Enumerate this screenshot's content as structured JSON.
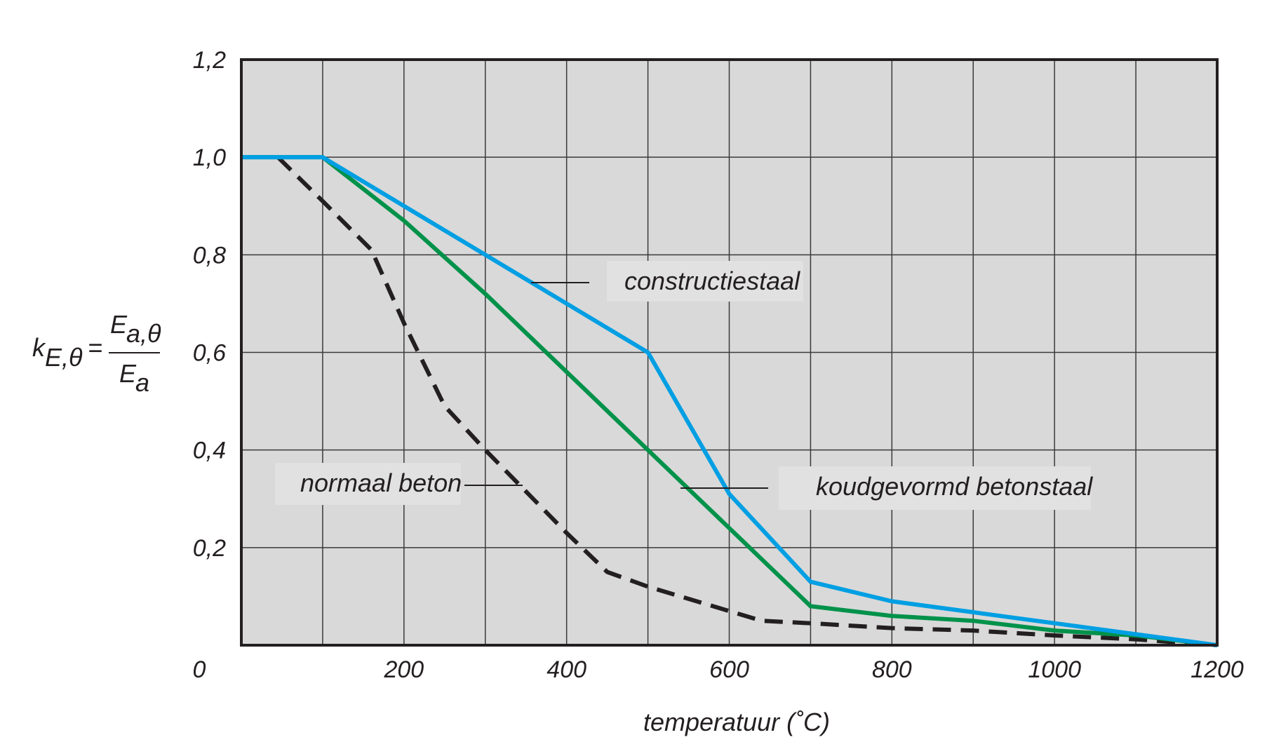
{
  "chart_data": {
    "type": "line",
    "xlabel": "temperatuur (˚C)",
    "ylabel": {
      "k": "k",
      "k_sub": "E,θ",
      "eq": "=",
      "num": "E",
      "num_sub": "a,θ",
      "den": "E",
      "den_sub": "a"
    },
    "xlim": [
      0,
      1200
    ],
    "ylim": [
      0,
      1.2
    ],
    "x_ticks": [
      "0",
      "200",
      "400",
      "600",
      "800",
      "1000",
      "1200"
    ],
    "x_tick_values": [
      0,
      200,
      400,
      600,
      800,
      1000,
      1200
    ],
    "y_ticks": [
      "0,2",
      "0,4",
      "0,6",
      "0,8",
      "1,0",
      "1,2"
    ],
    "y_tick_values": [
      0.2,
      0.4,
      0.6,
      0.8,
      1.0,
      1.2
    ],
    "grid": true,
    "x_grid_step": 100,
    "background": "#d9d9d9",
    "series": [
      {
        "name": "normaal beton",
        "color": "#231f20",
        "style": "dashed",
        "x": [
          45,
          100,
          160,
          200,
          250,
          300,
          400,
          450,
          500,
          600,
          640,
          700,
          800,
          900,
          1000,
          1100,
          1200
        ],
        "y": [
          1.0,
          0.91,
          0.81,
          0.66,
          0.49,
          0.4,
          0.23,
          0.15,
          0.12,
          0.07,
          0.05,
          0.045,
          0.035,
          0.03,
          0.02,
          0.012,
          0.0
        ]
      },
      {
        "name": "koudgevormd betonstaal",
        "color": "#00924a",
        "style": "solid",
        "x": [
          0,
          100,
          200,
          300,
          400,
          500,
          600,
          700,
          800,
          900,
          1000,
          1100,
          1200
        ],
        "y": [
          1.0,
          1.0,
          0.87,
          0.72,
          0.56,
          0.4,
          0.24,
          0.08,
          0.06,
          0.05,
          0.03,
          0.02,
          0.0
        ]
      },
      {
        "name": "constructiestaal",
        "color": "#009fe3",
        "style": "solid",
        "x": [
          0,
          100,
          200,
          300,
          400,
          500,
          600,
          700,
          800,
          900,
          1000,
          1100,
          1200
        ],
        "y": [
          1.0,
          1.0,
          0.9,
          0.8,
          0.7,
          0.6,
          0.31,
          0.13,
          0.09,
          0.0675,
          0.045,
          0.0225,
          0.0
        ]
      }
    ],
    "annotations": [
      {
        "text": "constructiestaal",
        "series": "constructiestaal"
      },
      {
        "text": "normaal beton",
        "series": "normaal beton"
      },
      {
        "text": "koudgevormd betonstaal",
        "series": "koudgevormd betonstaal"
      }
    ]
  }
}
